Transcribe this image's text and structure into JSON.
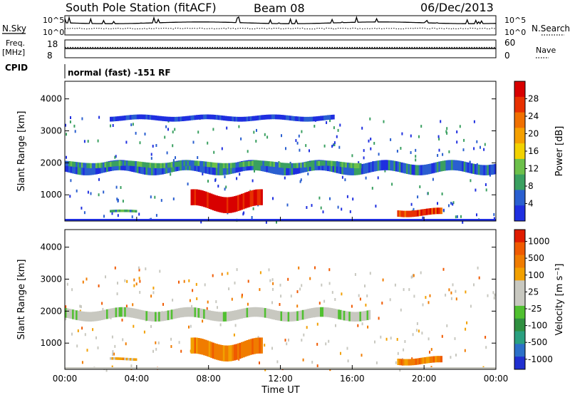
{
  "header": {
    "station": "South Pole Station (fitACF)",
    "beam": "Beam 08",
    "date": "06/Dec/2013"
  },
  "top_panels": {
    "nsky_label": "N.Sky",
    "nsearch_label": "N.Search",
    "noise_ticks_left": [
      "10^5",
      "10^0"
    ],
    "noise_ticks_right": [
      "10^5",
      "10^0"
    ],
    "freq_label_line1": "Freq.",
    "freq_label_line2": "[MHz]",
    "freq_ticks": [
      "18",
      "8"
    ],
    "nave_label": "Nave",
    "nave_ticks": [
      "60",
      "0"
    ],
    "cpid_label": "CPID",
    "cpid_text": "normal (fast) -151 RF"
  },
  "colors": {
    "power_scale": [
      "#1f2fe0",
      "#2a5fd0",
      "#3aa060",
      "#6cc04a",
      "#f2d200",
      "#f5a000",
      "#f07000",
      "#e83000",
      "#d80000"
    ],
    "velocity_scale": [
      "#2030d0",
      "#2c70c8",
      "#2aa080",
      "#2f9040",
      "#50c030",
      "#c8c8c0",
      "#c8c8c0",
      "#f2a000",
      "#f07c00",
      "#f05a00",
      "#e01c00"
    ],
    "ground": "#c8c8c0"
  },
  "chart_data": [
    {
      "type": "heatmap",
      "name": "power",
      "ylabel": "Slant Range [km]",
      "ylim": [
        180,
        4550
      ],
      "yticks": [
        "1000",
        "2000",
        "3000",
        "4000"
      ],
      "xticks": [
        "00:00",
        "04:00",
        "08:00",
        "12:00",
        "16:00",
        "20:00",
        "00:00"
      ],
      "colorbar_label": "Power [dB]",
      "colorbar_ticks": [
        "4",
        "8",
        "12",
        "16",
        "20",
        "24",
        "28"
      ],
      "regions": [
        {
          "t_start": 0.0,
          "t_end": 24.0,
          "range_center": 1850,
          "thickness": 320,
          "level": 1
        },
        {
          "t_start": 0.0,
          "t_end": 16.5,
          "range_center": 1950,
          "thickness": 160,
          "level": 2
        },
        {
          "t_start": 7.0,
          "t_end": 11.0,
          "range_center": 800,
          "thickness": 500,
          "level": 8
        },
        {
          "t_start": 18.5,
          "t_end": 21.0,
          "range_center": 450,
          "thickness": 200,
          "level": 7
        },
        {
          "t_start": 2.5,
          "t_end": 4.0,
          "range_center": 480,
          "thickness": 80,
          "level": 2
        },
        {
          "t_start": 2.5,
          "t_end": 15.0,
          "range_center": 3400,
          "thickness": 150,
          "level": 0
        }
      ]
    },
    {
      "type": "heatmap",
      "name": "velocity",
      "ylabel": "Slant Range [km]",
      "ylim": [
        180,
        4550
      ],
      "yticks": [
        "1000",
        "2000",
        "3000",
        "4000"
      ],
      "xticks": [
        "00:00",
        "04:00",
        "08:00",
        "12:00",
        "16:00",
        "20:00",
        "00:00"
      ],
      "xlabel": "Time UT",
      "colorbar_label": "Velocity [m s⁻¹]",
      "colorbar_ticks": [
        "1000",
        "500",
        "100",
        "25",
        "-25",
        "-100",
        "-500",
        "-1000"
      ],
      "regions": [
        {
          "t_start": 0.0,
          "t_end": 17.0,
          "range_center": 1900,
          "thickness": 300,
          "level": 5
        },
        {
          "t_start": 7.0,
          "t_end": 11.0,
          "range_center": 800,
          "thickness": 500,
          "level": 8
        },
        {
          "t_start": 18.5,
          "t_end": 21.0,
          "range_center": 450,
          "thickness": 200,
          "level": 8
        },
        {
          "t_start": 2.5,
          "t_end": 4.0,
          "range_center": 500,
          "thickness": 80,
          "level": 7
        }
      ]
    }
  ]
}
